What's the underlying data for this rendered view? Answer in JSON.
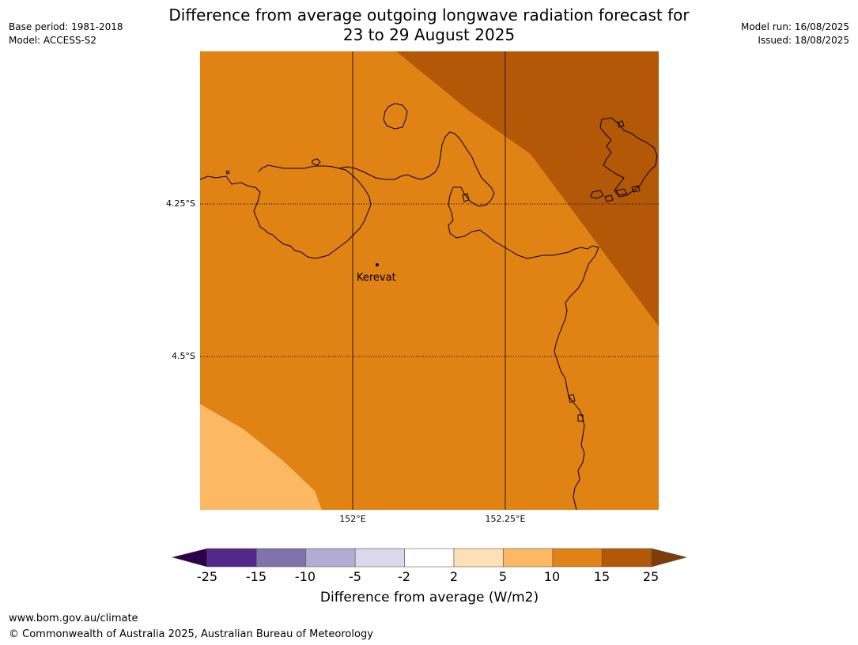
{
  "header": {
    "title_line1": "Difference from average outgoing longwave radiation forecast for",
    "title_line2": "23 to 29 August 2025",
    "base_period": "Base period: 1981-2018",
    "model": "Model: ACCESS-S2",
    "model_run": "Model run: 16/08/2025",
    "issued": "Issued: 18/08/2025"
  },
  "map": {
    "place_label": "Kerevat",
    "lat_ticks": [
      "4.25°S",
      "4.5°S"
    ],
    "lon_ticks": [
      "152°E",
      "152.25°E"
    ],
    "fill_colors": {
      "main": "#e08214",
      "high": "#b35806",
      "low": "#fdb863",
      "coast": "#000000",
      "grid": "#000000"
    }
  },
  "colorbar": {
    "label": "Difference from average (W/m2)",
    "ticks": [
      "-25",
      "-15",
      "-10",
      "-5",
      "-2",
      "2",
      "5",
      "10",
      "15",
      "25"
    ],
    "colors": [
      "#542788",
      "#8073ac",
      "#b2abd2",
      "#d8daeb",
      "#ffffff",
      "#fee0b6",
      "#fdb863",
      "#e08214",
      "#b35806"
    ],
    "extend_low_color": "#2d004b",
    "extend_high_color": "#7f3b08"
  },
  "footer": {
    "url": "www.bom.gov.au/climate",
    "copyright": "© Commonwealth of Australia 2025, Australian Bureau of Meteorology"
  }
}
